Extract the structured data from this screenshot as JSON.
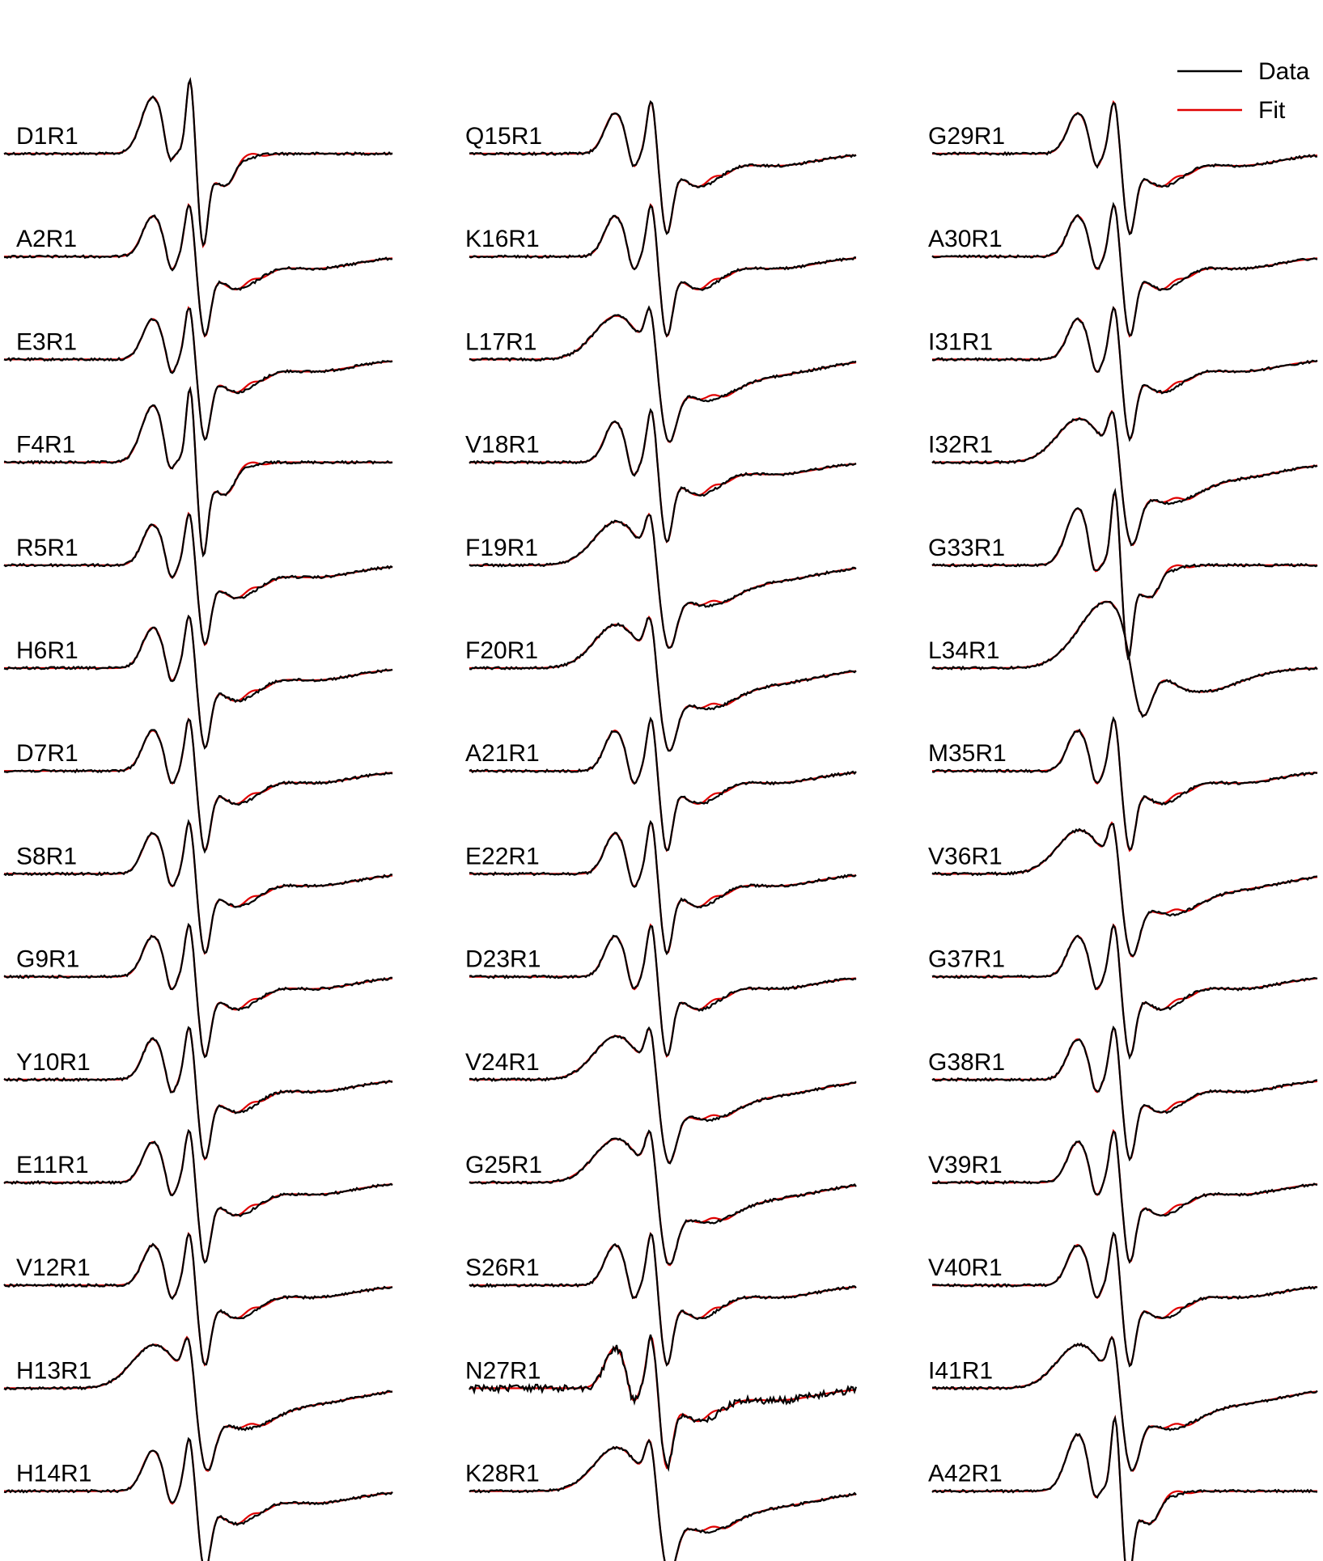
{
  "chart_data": {
    "type": "line",
    "title": "",
    "xlabel": "",
    "ylabel": "",
    "grid": false,
    "legend": {
      "position": "top-right",
      "entries": [
        {
          "name": "Data",
          "color": "#000000"
        },
        {
          "name": "Fit",
          "color": "#e00000"
        }
      ]
    },
    "colors": {
      "data": "#000000",
      "fit": "#e00000"
    },
    "panels": [
      {
        "label": "D1R1",
        "column": 1,
        "lineshape": "mobile-sharp"
      },
      {
        "label": "A2R1",
        "column": 1,
        "lineshape": "two-component"
      },
      {
        "label": "E3R1",
        "column": 1,
        "lineshape": "two-component"
      },
      {
        "label": "F4R1",
        "column": 1,
        "lineshape": "mobile-sharp"
      },
      {
        "label": "R5R1",
        "column": 1,
        "lineshape": "two-component"
      },
      {
        "label": "H6R1",
        "column": 1,
        "lineshape": "two-component"
      },
      {
        "label": "D7R1",
        "column": 1,
        "lineshape": "two-component"
      },
      {
        "label": "S8R1",
        "column": 1,
        "lineshape": "two-component"
      },
      {
        "label": "G9R1",
        "column": 1,
        "lineshape": "two-component"
      },
      {
        "label": "Y10R1",
        "column": 1,
        "lineshape": "two-component"
      },
      {
        "label": "E11R1",
        "column": 1,
        "lineshape": "two-component"
      },
      {
        "label": "V12R1",
        "column": 1,
        "lineshape": "two-component"
      },
      {
        "label": "H13R1",
        "column": 1,
        "lineshape": "broad"
      },
      {
        "label": "H14R1",
        "column": 1,
        "lineshape": "two-component"
      },
      {
        "label": "Q15R1",
        "column": 2,
        "lineshape": "two-component"
      },
      {
        "label": "K16R1",
        "column": 2,
        "lineshape": "two-component"
      },
      {
        "label": "L17R1",
        "column": 2,
        "lineshape": "broad"
      },
      {
        "label": "V18R1",
        "column": 2,
        "lineshape": "two-component"
      },
      {
        "label": "F19R1",
        "column": 2,
        "lineshape": "broad"
      },
      {
        "label": "F20R1",
        "column": 2,
        "lineshape": "broad"
      },
      {
        "label": "A21R1",
        "column": 2,
        "lineshape": "two-component"
      },
      {
        "label": "E22R1",
        "column": 2,
        "lineshape": "two-component"
      },
      {
        "label": "D23R1",
        "column": 2,
        "lineshape": "two-component"
      },
      {
        "label": "V24R1",
        "column": 2,
        "lineshape": "broad"
      },
      {
        "label": "G25R1",
        "column": 2,
        "lineshape": "broad"
      },
      {
        "label": "S26R1",
        "column": 2,
        "lineshape": "two-component"
      },
      {
        "label": "N27R1",
        "column": 2,
        "lineshape": "two-component-noisy"
      },
      {
        "label": "K28R1",
        "column": 2,
        "lineshape": "broad"
      },
      {
        "label": "G29R1",
        "column": 3,
        "lineshape": "two-component"
      },
      {
        "label": "A30R1",
        "column": 3,
        "lineshape": "two-component"
      },
      {
        "label": "I31R1",
        "column": 3,
        "lineshape": "two-component"
      },
      {
        "label": "I32R1",
        "column": 3,
        "lineshape": "broad"
      },
      {
        "label": "G33R1",
        "column": 3,
        "lineshape": "mobile-sharp"
      },
      {
        "label": "L34R1",
        "column": 3,
        "lineshape": "immobile"
      },
      {
        "label": "M35R1",
        "column": 3,
        "lineshape": "two-component"
      },
      {
        "label": "V36R1",
        "column": 3,
        "lineshape": "broad"
      },
      {
        "label": "G37R1",
        "column": 3,
        "lineshape": "two-component"
      },
      {
        "label": "G38R1",
        "column": 3,
        "lineshape": "two-component"
      },
      {
        "label": "V39R1",
        "column": 3,
        "lineshape": "two-component"
      },
      {
        "label": "V40R1",
        "column": 3,
        "lineshape": "two-component"
      },
      {
        "label": "I41R1",
        "column": 3,
        "lineshape": "broad"
      },
      {
        "label": "A42R1",
        "column": 3,
        "lineshape": "mobile-sharp"
      }
    ]
  }
}
